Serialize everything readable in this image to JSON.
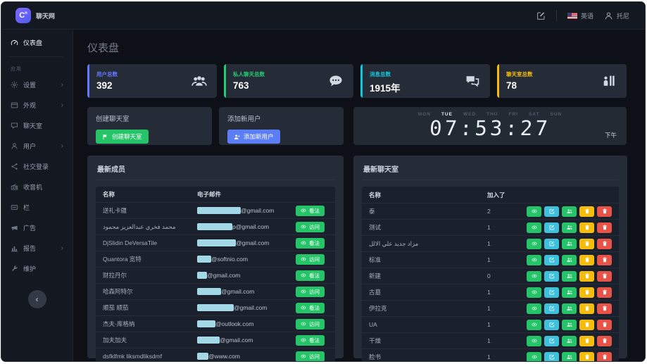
{
  "theme": {
    "primary": "#6576ff",
    "blue_button": "#5b7df5",
    "success": "#26c468",
    "info": "#3fc1dc",
    "warning": "#f4bd0e",
    "danger": "#e85347",
    "card_bg": "#262c37",
    "sidebar_bg": "#141821",
    "content_bg": "#0d1016",
    "redact_bar": "#a3d9e6"
  },
  "brand": {
    "logo_text": "C",
    "logo_sub": "n",
    "name": "聊天网"
  },
  "topbar": {
    "language": "英语",
    "user": "托尼"
  },
  "sidebar": {
    "section_label": "应用",
    "collapse_icon": "‹",
    "items": [
      {
        "label": "仪表盘",
        "icon": "dashboard-icon",
        "active": true
      },
      {
        "label": "设置",
        "icon": "gear-icon",
        "chevron": true
      },
      {
        "label": "外观",
        "icon": "layout-icon",
        "chevron": true
      },
      {
        "label": "聊天室",
        "icon": "chat-icon"
      },
      {
        "label": "用户",
        "icon": "user-icon",
        "chevron": true
      },
      {
        "label": "社交登录",
        "icon": "share-icon"
      },
      {
        "label": "收音机",
        "icon": "radio-icon"
      },
      {
        "label": "栏",
        "icon": "banner-icon"
      },
      {
        "label": "广告",
        "icon": "megaphone-icon"
      },
      {
        "label": "报告",
        "icon": "chart-icon",
        "chevron": true
      },
      {
        "label": "维护",
        "icon": "wrench-icon"
      }
    ]
  },
  "page_title": "仪表盘",
  "stats": [
    {
      "label": "用户总数",
      "value": "392",
      "color": "#6576ff",
      "icon": "users-group-icon"
    },
    {
      "label": "私人聊天总数",
      "value": "763",
      "color": "#24ca74",
      "icon": "chat-dots-icon"
    },
    {
      "label": "消息总数",
      "value": "1915年",
      "color": "#0fc8dc",
      "icon": "chat-multi-icon"
    },
    {
      "label": "聊天室总数",
      "value": "78",
      "color": "#f4bd0e",
      "icon": "room-icon"
    }
  ],
  "actions": [
    {
      "title": "创建聊天室",
      "button_label": "创建聊天室",
      "button_color": "#26c468",
      "icon": "flag-icon"
    },
    {
      "title": "添加新用户",
      "button_label": "添加新用户",
      "button_color": "#5b7df5",
      "icon": "user-plus-icon"
    }
  ],
  "clock": {
    "days": [
      "MON",
      "TUE",
      "WED",
      "THU",
      "FRI",
      "SAT",
      "SUN"
    ],
    "active_day": "TUE",
    "time": "07:53:27",
    "meridiem": "下午"
  },
  "members_table": {
    "title": "最新成员",
    "columns": [
      "名称",
      "电子邮件"
    ],
    "rows": [
      {
        "name": "送礼卡疆",
        "email_suffix": "@gmail.com",
        "redact_width": 62,
        "action": "看法"
      },
      {
        "name": "محمد فخري عبدالعزيز محمود",
        "email_suffix": "p@gmail.com",
        "redact_width": 50,
        "action": "访问"
      },
      {
        "name": "DjSlidin DeVersaTile",
        "email_suffix": "@gmail.com",
        "redact_width": 55,
        "action": "看法"
      },
      {
        "name": "Quantora 宽特",
        "email_suffix": "@softnio.com",
        "redact_width": 20,
        "action": "访问"
      },
      {
        "name": "财拉丹尔",
        "email_suffix": "@gmail.com",
        "redact_width": 14,
        "action": "看法"
      },
      {
        "name": "哈森阿特尔",
        "email_suffix": "@gmail.com",
        "redact_width": 34,
        "action": "访问"
      },
      {
        "name": "顺茄 顺茄",
        "email_suffix": "@gmail.com",
        "redact_width": 52,
        "action": "看法"
      },
      {
        "name": "杰夫·库格纳",
        "email_suffix": "@outlook.com",
        "redact_width": 26,
        "action": "访问"
      },
      {
        "name": "加夫加夫",
        "email_suffix": "@gmail.com",
        "redact_width": 32,
        "action": "看法"
      },
      {
        "name": "dsfklfmk liksmdliksdmf",
        "email_suffix": "@www.com",
        "redact_width": 16,
        "action": "访问"
      }
    ]
  },
  "rooms_table": {
    "title": "最新聊天室",
    "columns": [
      "名称",
      "加入了"
    ],
    "action_buttons": [
      {
        "name": "view-button",
        "icon": "eye-icon",
        "color": "#26c468"
      },
      {
        "name": "edit-button",
        "icon": "edit-icon",
        "color": "#3fc1dc"
      },
      {
        "name": "members-button",
        "icon": "users-icon",
        "color": "#26c468"
      },
      {
        "name": "clear-button",
        "icon": "trash-icon",
        "color": "#f4bd0e"
      },
      {
        "name": "delete-button",
        "icon": "trash-icon",
        "color": "#e85347"
      }
    ],
    "rows": [
      {
        "name": "泰",
        "joined": "2"
      },
      {
        "name": "测试",
        "joined": "1"
      },
      {
        "name": "مزاد جديد علي الالل",
        "joined": "1"
      },
      {
        "name": "标准",
        "joined": "1"
      },
      {
        "name": "新建",
        "joined": "0"
      },
      {
        "name": "古墓",
        "joined": "1"
      },
      {
        "name": "伊拉克",
        "joined": "1"
      },
      {
        "name": "UA",
        "joined": "1"
      },
      {
        "name": "干燥",
        "joined": "1"
      },
      {
        "name": "脸书",
        "joined": "1"
      }
    ]
  }
}
